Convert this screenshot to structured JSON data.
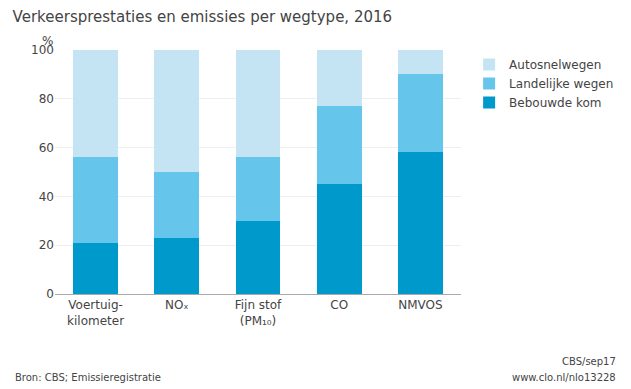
{
  "chart_data": {
    "type": "bar",
    "title": "Verkeersprestaties en emissies per wegtype, 2016",
    "categories": [
      "Voertuig-\nkilometer",
      "NOₓ",
      "Fijn stof\n(PM₁₀)",
      "CO",
      "NMVOS"
    ],
    "series": [
      {
        "name": "Bebouwde kom",
        "color": "#0099cc",
        "values": [
          21,
          23,
          30,
          45,
          58
        ]
      },
      {
        "name": "Landelijke wegen",
        "color": "#66c5ea",
        "values": [
          35,
          27,
          26,
          32,
          32
        ]
      },
      {
        "name": "Autosnelwegen",
        "color": "#c5e4f3",
        "values": [
          44,
          50,
          44,
          23,
          10
        ]
      }
    ],
    "stacked": true,
    "ylabel": "%",
    "ylim": [
      0,
      100
    ],
    "yticks": [
      0,
      20,
      40,
      60,
      80,
      100
    ],
    "grid": true,
    "legend": "upper right",
    "annotations": [
      "Bron: CBS; Emissieregistratie",
      "CBS/sep17",
      "www.clo.nl/nlo13228"
    ]
  }
}
